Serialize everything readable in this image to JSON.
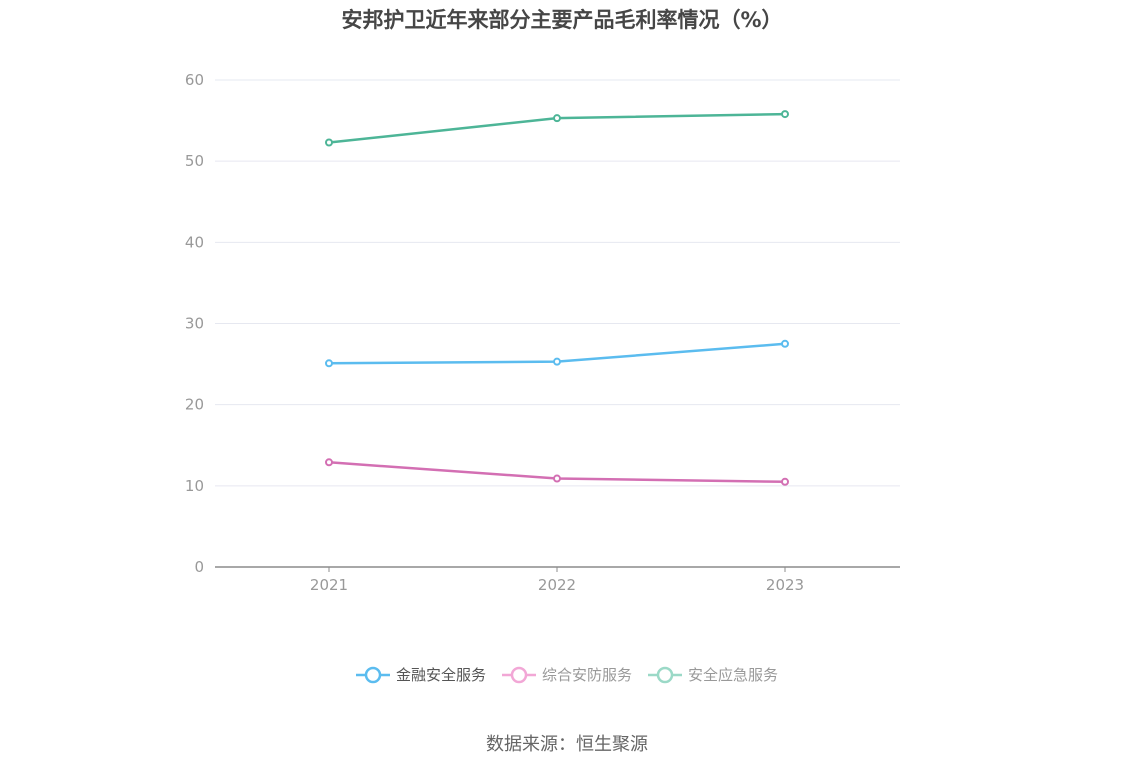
{
  "title": "安邦护卫近年来部分主要产品毛利率情况（%）",
  "source": "数据来源：恒生聚源",
  "chart_data": {
    "type": "line",
    "categories": [
      "2021",
      "2022",
      "2023"
    ],
    "ylim": [
      0,
      60
    ],
    "yticks": [
      0,
      10,
      20,
      30,
      40,
      50,
      60
    ],
    "grid": true,
    "legend_position": "bottom",
    "series": [
      {
        "name": "金融安全服务",
        "values": [
          25.1,
          25.3,
          27.5
        ],
        "color": "#5bbcef",
        "legend_color": "#5bbcef"
      },
      {
        "name": "综合安防服务",
        "values": [
          12.9,
          10.9,
          10.5
        ],
        "color": "#d36fb3",
        "legend_color": "#f2a7d6"
      },
      {
        "name": "安全应急服务",
        "values": [
          52.3,
          55.3,
          55.8
        ],
        "color": "#4db597",
        "legend_color": "#9bd9c7"
      }
    ]
  }
}
